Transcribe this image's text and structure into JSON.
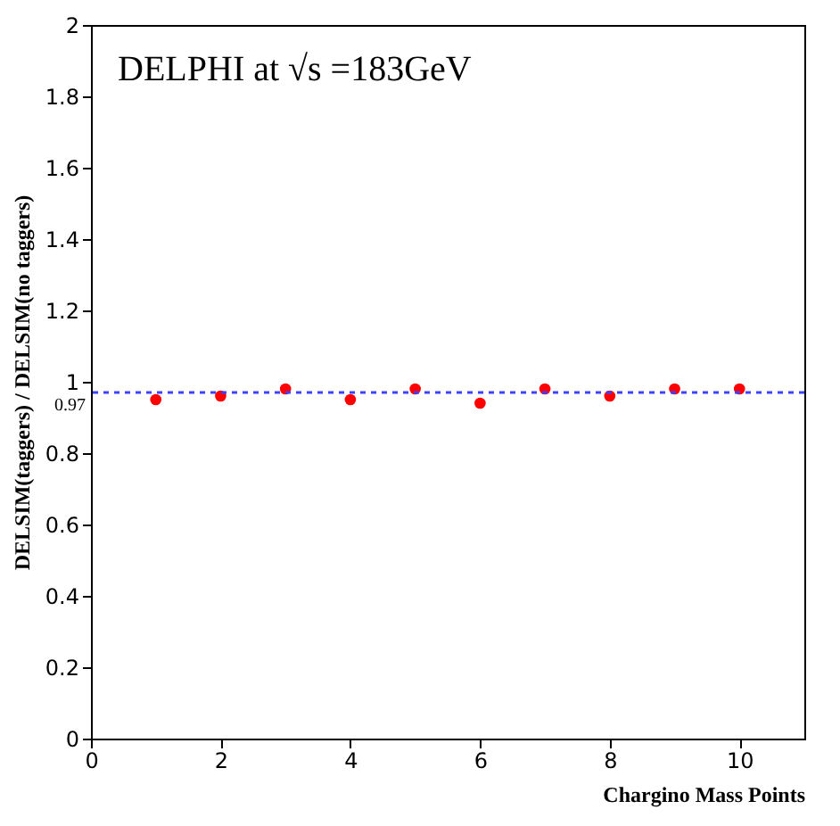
{
  "chart_data": {
    "type": "scatter",
    "xlabel": "Chargino Mass Points",
    "ylabel": "DELSIM(taggers) / DELSIM(no taggers)",
    "annotations": [
      "DELPHI at √s =183GeV"
    ],
    "x": [
      1,
      2,
      3,
      4,
      5,
      6,
      7,
      8,
      9,
      10
    ],
    "series": [
      {
        "color": "#ff0000",
        "values": [
          0.95,
          0.96,
          0.98,
          0.95,
          0.98,
          0.94,
          0.98,
          0.96,
          0.98,
          0.98
        ],
        "errors": [
          0.01,
          0.01,
          0.005,
          0.01,
          0.005,
          0.01,
          0.005,
          0.01,
          0.005,
          0.005
        ]
      }
    ],
    "xlim": [
      0,
      11
    ],
    "xticks": [
      0,
      2,
      4,
      6,
      8,
      10
    ],
    "ylim": [
      0,
      2
    ],
    "yticks": [
      0,
      0.2,
      0.4,
      0.6,
      0.8,
      1,
      1.2,
      1.4,
      1.6,
      1.8,
      2
    ],
    "ref_lines": [
      {
        "axis": "y",
        "value": 0.97,
        "label": "0.97",
        "color": "#4040ff",
        "line_style": "dotted"
      }
    ],
    "marker": "circle",
    "grid": false
  }
}
